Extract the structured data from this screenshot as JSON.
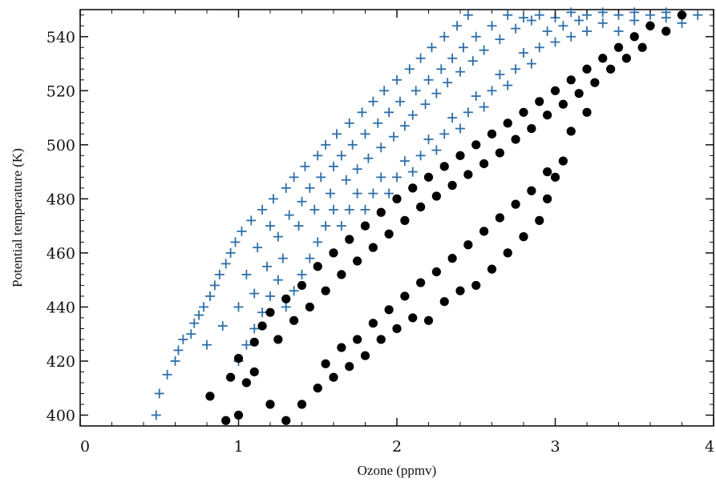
{
  "chart_data": {
    "type": "scatter",
    "title": "",
    "xlabel": "Ozone (ppmv)",
    "ylabel": "Potential temperature (K)",
    "xlim": [
      0,
      4
    ],
    "ylim": [
      396,
      550
    ],
    "x_ticks": [
      "0",
      "1",
      "2",
      "3",
      "4"
    ],
    "y_ticks": [
      "400",
      "420",
      "440",
      "460",
      "480",
      "500",
      "520",
      "540"
    ],
    "grid": false,
    "legend": "none",
    "series": [
      {
        "marker": "plus",
        "color": "#2f6fa8",
        "points": [
          [
            0.48,
            400
          ],
          [
            0.5,
            408
          ],
          [
            0.55,
            415
          ],
          [
            0.6,
            420
          ],
          [
            0.62,
            424
          ],
          [
            0.65,
            428
          ],
          [
            0.7,
            430
          ],
          [
            0.72,
            434
          ],
          [
            0.75,
            437
          ],
          [
            0.78,
            440
          ],
          [
            0.8,
            426
          ],
          [
            0.82,
            444
          ],
          [
            0.85,
            448
          ],
          [
            0.88,
            452
          ],
          [
            0.9,
            433
          ],
          [
            0.92,
            456
          ],
          [
            0.95,
            460
          ],
          [
            0.98,
            464
          ],
          [
            1.0,
            440
          ],
          [
            1.02,
            468
          ],
          [
            1.05,
            452
          ],
          [
            1.08,
            472
          ],
          [
            1.1,
            445
          ],
          [
            1.12,
            462
          ],
          [
            1.15,
            476
          ],
          [
            1.18,
            455
          ],
          [
            1.2,
            470
          ],
          [
            1.22,
            480
          ],
          [
            1.25,
            466
          ],
          [
            1.28,
            458
          ],
          [
            1.3,
            484
          ],
          [
            1.32,
            474
          ],
          [
            1.35,
            488
          ],
          [
            1.38,
            470
          ],
          [
            1.4,
            479
          ],
          [
            1.42,
            492
          ],
          [
            1.45,
            484
          ],
          [
            1.48,
            476
          ],
          [
            1.5,
            496
          ],
          [
            1.52,
            488
          ],
          [
            1.55,
            500
          ],
          [
            1.58,
            482
          ],
          [
            1.6,
            492
          ],
          [
            1.62,
            504
          ],
          [
            1.65,
            496
          ],
          [
            1.68,
            487
          ],
          [
            1.7,
            508
          ],
          [
            1.72,
            500
          ],
          [
            1.75,
            491
          ],
          [
            1.78,
            512
          ],
          [
            1.8,
            504
          ],
          [
            1.82,
            495
          ],
          [
            1.85,
            516
          ],
          [
            1.88,
            508
          ],
          [
            1.9,
            499
          ],
          [
            1.92,
            520
          ],
          [
            1.95,
            512
          ],
          [
            1.98,
            503
          ],
          [
            2.0,
            524
          ],
          [
            2.02,
            516
          ],
          [
            2.05,
            507
          ],
          [
            2.08,
            528
          ],
          [
            2.1,
            511
          ],
          [
            2.12,
            520
          ],
          [
            2.15,
            532
          ],
          [
            2.18,
            515
          ],
          [
            2.2,
            524
          ],
          [
            2.22,
            536
          ],
          [
            2.25,
            519
          ],
          [
            2.28,
            528
          ],
          [
            2.3,
            540
          ],
          [
            2.32,
            523
          ],
          [
            2.35,
            532
          ],
          [
            2.38,
            544
          ],
          [
            2.4,
            527
          ],
          [
            2.42,
            536
          ],
          [
            2.45,
            548
          ],
          [
            2.48,
            531
          ],
          [
            2.5,
            540
          ],
          [
            2.55,
            535
          ],
          [
            2.6,
            544
          ],
          [
            2.65,
            539
          ],
          [
            2.7,
            548
          ],
          [
            2.75,
            543
          ],
          [
            2.8,
            547
          ],
          [
            2.85,
            546
          ],
          [
            2.9,
            548
          ],
          [
            3.0,
            547
          ],
          [
            3.1,
            549
          ],
          [
            3.2,
            548
          ],
          [
            3.3,
            549
          ],
          [
            3.4,
            548
          ],
          [
            3.5,
            549
          ],
          [
            3.6,
            548
          ],
          [
            3.7,
            549
          ],
          [
            3.8,
            548
          ],
          [
            1.0,
            420
          ],
          [
            1.05,
            426
          ],
          [
            1.1,
            432
          ],
          [
            1.15,
            438
          ],
          [
            1.2,
            444
          ],
          [
            1.25,
            450
          ],
          [
            1.3,
            440
          ],
          [
            1.35,
            446
          ],
          [
            1.4,
            452
          ],
          [
            1.45,
            458
          ],
          [
            1.5,
            464
          ],
          [
            1.55,
            470
          ],
          [
            1.6,
            476
          ],
          [
            1.65,
            470
          ],
          [
            1.7,
            476
          ],
          [
            1.75,
            482
          ],
          [
            1.8,
            476
          ],
          [
            1.85,
            482
          ],
          [
            1.9,
            488
          ],
          [
            1.95,
            482
          ],
          [
            2.0,
            488
          ],
          [
            2.05,
            494
          ],
          [
            2.1,
            490
          ],
          [
            2.15,
            496
          ],
          [
            2.2,
            502
          ],
          [
            2.25,
            498
          ],
          [
            2.3,
            504
          ],
          [
            2.35,
            510
          ],
          [
            2.4,
            506
          ],
          [
            2.45,
            512
          ],
          [
            2.5,
            518
          ],
          [
            2.55,
            514
          ],
          [
            2.6,
            520
          ],
          [
            2.65,
            526
          ],
          [
            2.7,
            522
          ],
          [
            2.75,
            528
          ],
          [
            2.8,
            534
          ],
          [
            2.85,
            530
          ],
          [
            2.9,
            536
          ],
          [
            2.95,
            542
          ],
          [
            3.0,
            538
          ],
          [
            3.05,
            544
          ],
          [
            3.1,
            540
          ],
          [
            3.15,
            546
          ],
          [
            3.2,
            542
          ],
          [
            3.3,
            545
          ],
          [
            3.4,
            542
          ],
          [
            3.5,
            546
          ],
          [
            3.6,
            544
          ],
          [
            3.7,
            547
          ],
          [
            3.8,
            545
          ],
          [
            3.9,
            548
          ]
        ]
      },
      {
        "marker": "filled-circle",
        "color": "#000000",
        "points": [
          [
            0.82,
            407
          ],
          [
            0.92,
            398
          ],
          [
            1.0,
            400
          ],
          [
            0.95,
            414
          ],
          [
            1.05,
            412
          ],
          [
            1.0,
            421
          ],
          [
            1.1,
            427
          ],
          [
            1.1,
            416
          ],
          [
            1.15,
            433
          ],
          [
            1.2,
            438
          ],
          [
            1.25,
            428
          ],
          [
            1.3,
            443
          ],
          [
            1.35,
            435
          ],
          [
            1.4,
            448
          ],
          [
            1.45,
            440
          ],
          [
            1.5,
            455
          ],
          [
            1.55,
            446
          ],
          [
            1.6,
            460
          ],
          [
            1.65,
            452
          ],
          [
            1.7,
            465
          ],
          [
            1.75,
            457
          ],
          [
            1.8,
            470
          ],
          [
            1.85,
            462
          ],
          [
            1.9,
            475
          ],
          [
            1.95,
            467
          ],
          [
            2.0,
            480
          ],
          [
            2.05,
            472
          ],
          [
            2.1,
            484
          ],
          [
            2.15,
            477
          ],
          [
            2.2,
            488
          ],
          [
            2.25,
            481
          ],
          [
            2.3,
            492
          ],
          [
            2.35,
            485
          ],
          [
            2.4,
            496
          ],
          [
            2.45,
            489
          ],
          [
            2.5,
            500
          ],
          [
            2.55,
            493
          ],
          [
            2.6,
            504
          ],
          [
            2.65,
            497
          ],
          [
            2.7,
            508
          ],
          [
            2.75,
            502
          ],
          [
            2.8,
            512
          ],
          [
            2.85,
            506
          ],
          [
            2.9,
            516
          ],
          [
            2.95,
            511
          ],
          [
            3.0,
            520
          ],
          [
            3.05,
            515
          ],
          [
            3.1,
            524
          ],
          [
            3.15,
            519
          ],
          [
            3.2,
            528
          ],
          [
            3.25,
            523
          ],
          [
            3.3,
            532
          ],
          [
            3.35,
            528
          ],
          [
            3.4,
            536
          ],
          [
            3.45,
            532
          ],
          [
            3.5,
            540
          ],
          [
            3.55,
            536
          ],
          [
            3.6,
            544
          ],
          [
            3.7,
            542
          ],
          [
            3.8,
            548
          ],
          [
            1.2,
            404
          ],
          [
            1.3,
            398
          ],
          [
            1.4,
            404
          ],
          [
            1.5,
            410
          ],
          [
            1.6,
            414
          ],
          [
            1.7,
            418
          ],
          [
            1.8,
            422
          ],
          [
            1.9,
            428
          ],
          [
            2.0,
            432
          ],
          [
            2.1,
            436
          ],
          [
            2.2,
            435
          ],
          [
            2.3,
            442
          ],
          [
            2.4,
            446
          ],
          [
            2.5,
            448
          ],
          [
            2.6,
            454
          ],
          [
            2.7,
            460
          ],
          [
            2.8,
            466
          ],
          [
            2.9,
            472
          ],
          [
            2.95,
            480
          ],
          [
            3.0,
            488
          ],
          [
            3.05,
            494
          ],
          [
            1.55,
            419
          ],
          [
            1.65,
            425
          ],
          [
            1.75,
            428
          ],
          [
            1.85,
            434
          ],
          [
            1.95,
            439
          ],
          [
            2.05,
            444
          ],
          [
            2.15,
            449
          ],
          [
            2.25,
            453
          ],
          [
            2.35,
            458
          ],
          [
            2.45,
            463
          ],
          [
            2.55,
            468
          ],
          [
            2.65,
            473
          ],
          [
            2.75,
            478
          ],
          [
            2.85,
            483
          ],
          [
            2.95,
            490
          ],
          [
            3.1,
            505
          ],
          [
            3.2,
            512
          ]
        ]
      }
    ]
  }
}
